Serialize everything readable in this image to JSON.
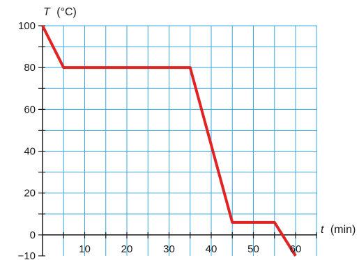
{
  "chart_data": {
    "type": "line",
    "ylabel_var": "T",
    "ylabel_unit": "(°C)",
    "xlabel_var": "t",
    "xlabel_unit": "(min)",
    "xlim": [
      0,
      65
    ],
    "ylim": [
      -10,
      100
    ],
    "x_ticks": [
      10,
      20,
      30,
      40,
      50,
      60
    ],
    "y_ticks": [
      100,
      80,
      60,
      40,
      20,
      0,
      -10
    ],
    "y_tick_labels": [
      "100",
      "80",
      "60",
      "40",
      "20",
      "0",
      "−10"
    ],
    "grid": true,
    "series": [
      {
        "x": [
          0,
          5,
          35,
          45,
          55,
          60
        ],
        "y": [
          100,
          80,
          80,
          6,
          6,
          -10
        ]
      }
    ],
    "colors": {
      "grid": "#3aa7e0",
      "line": "#e02424",
      "axis": "#1a1a1a"
    }
  }
}
